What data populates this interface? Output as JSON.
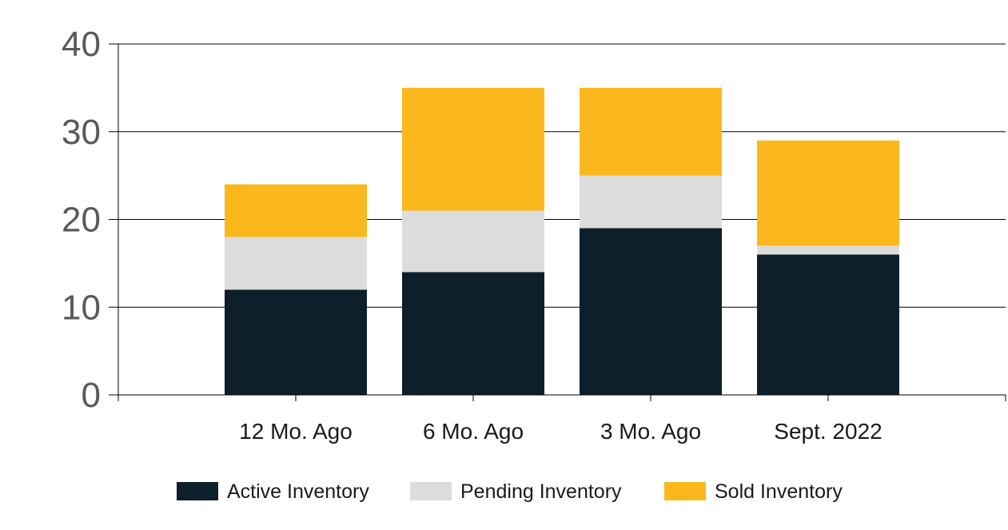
{
  "chart_data": {
    "type": "bar",
    "stacked": true,
    "categories": [
      "12 Mo. Ago",
      "6 Mo. Ago",
      "3 Mo. Ago",
      "Sept. 2022"
    ],
    "series": [
      {
        "name": "Active Inventory",
        "values": [
          12,
          14,
          19,
          16
        ],
        "color": "#0d1f2b"
      },
      {
        "name": "Pending Inventory",
        "values": [
          6,
          7,
          6,
          1
        ],
        "color": "#dcdcdc"
      },
      {
        "name": "Sold Inventory",
        "values": [
          6,
          14,
          10,
          12
        ],
        "color": "#fbb81c"
      }
    ],
    "ylim": [
      0,
      40
    ],
    "yticks": [
      0,
      10,
      20,
      30,
      40
    ],
    "grid": true,
    "legend": "bottom"
  }
}
